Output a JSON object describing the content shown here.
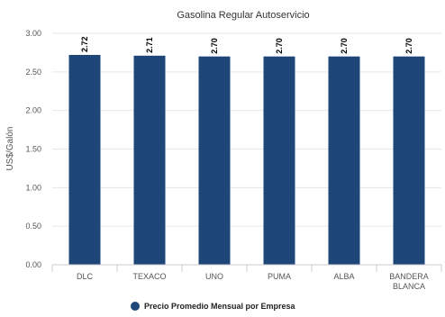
{
  "chart_data": {
    "type": "bar",
    "title": "Gasolina Regular Autoservicio",
    "ylabel": "US$/Galón",
    "xlabel": "",
    "categories": [
      "DLC",
      "TEXACO",
      "UNO",
      "PUMA",
      "ALBA",
      "BANDERA BLANCA"
    ],
    "series": [
      {
        "name": "Precio Promedio Mensual por Empresa",
        "values": [
          2.72,
          2.71,
          2.7,
          2.7,
          2.7,
          2.7
        ],
        "labels": [
          "2.72",
          "2.71",
          "2.70",
          "2.70",
          "2.70",
          "2.70"
        ],
        "color": "#1f4678"
      }
    ],
    "ylim": [
      0,
      3
    ],
    "yticks": [
      "0.00",
      "0.50",
      "1.00",
      "1.50",
      "2.00",
      "2.50",
      "3.00"
    ],
    "grid": true,
    "legend_position": "bottom"
  }
}
